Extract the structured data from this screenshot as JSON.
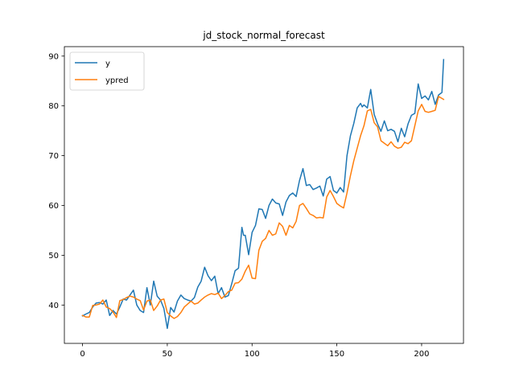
{
  "chart_data": {
    "type": "line",
    "title": "jd_stock_normal_forecast",
    "xlabel": "",
    "ylabel": "",
    "xlim": [
      -10.7,
      224.7
    ],
    "ylim": [
      32.3,
      91.9
    ],
    "xticks": [
      0,
      50,
      100,
      150,
      200
    ],
    "yticks": [
      40,
      50,
      60,
      70,
      80,
      90
    ],
    "grid": false,
    "legend_position": "top-left",
    "series": [
      {
        "name": "y",
        "color": "#1f77b4",
        "x": [
          0,
          2,
          4,
          6,
          8,
          10,
          12,
          14,
          16,
          18,
          20,
          22,
          24,
          26,
          28,
          30,
          32,
          34,
          36,
          38,
          40,
          42,
          44,
          46,
          48,
          50,
          52,
          54,
          56,
          58,
          60,
          62,
          64,
          66,
          68,
          70,
          72,
          74,
          76,
          78,
          80,
          82,
          84,
          86,
          88,
          90,
          92,
          94,
          95,
          96,
          98,
          100,
          102,
          104,
          106,
          108,
          110,
          112,
          114,
          116,
          118,
          120,
          122,
          124,
          126,
          128,
          130,
          132,
          134,
          136,
          138,
          140,
          142,
          144,
          146,
          148,
          150,
          152,
          154,
          156,
          158,
          160,
          162,
          164,
          165,
          166,
          168,
          170,
          172,
          174,
          176,
          178,
          180,
          182,
          184,
          186,
          188,
          190,
          192,
          194,
          196,
          198,
          200,
          202,
          204,
          206,
          208,
          210,
          212,
          213
        ],
        "values": [
          37.8,
          38.2,
          38.5,
          39.6,
          40.4,
          40.5,
          40.2,
          41.0,
          37.9,
          38.9,
          38.2,
          39.6,
          41.2,
          41.0,
          42.0,
          43.0,
          40.0,
          38.9,
          38.5,
          43.5,
          40.0,
          44.8,
          41.8,
          41.0,
          39.3,
          35.3,
          39.5,
          38.6,
          40.8,
          42.0,
          41.3,
          41.0,
          40.8,
          41.5,
          43.6,
          44.8,
          47.6,
          45.9,
          44.9,
          45.8,
          42.3,
          43.5,
          41.6,
          41.9,
          44.3,
          46.9,
          47.4,
          55.6,
          54.0,
          54.0,
          50.1,
          54.6,
          56.0,
          59.3,
          59.2,
          57.4,
          60.0,
          61.3,
          60.5,
          60.3,
          58.0,
          60.7,
          62.0,
          62.5,
          61.8,
          65.0,
          67.4,
          64.0,
          64.2,
          63.2,
          63.5,
          63.9,
          61.9,
          65.3,
          65.8,
          63.0,
          62.5,
          63.6,
          62.7,
          70.0,
          74.0,
          76.5,
          79.6,
          80.5,
          79.8,
          80.2,
          79.6,
          83.3,
          78.3,
          76.4,
          74.9,
          77.0,
          75.0,
          75.3,
          74.9,
          72.8,
          75.5,
          73.8,
          76.4,
          78.1,
          78.5,
          84.4,
          81.5,
          82.0,
          81.2,
          82.9,
          80.3,
          82.2,
          82.7,
          89.3
        ]
      },
      {
        "name": "ypred",
        "color": "#ff7f0e",
        "x": [
          0,
          2,
          4,
          6,
          8,
          10,
          12,
          14,
          16,
          18,
          20,
          22,
          24,
          26,
          28,
          30,
          32,
          34,
          36,
          38,
          40,
          42,
          44,
          46,
          48,
          50,
          52,
          54,
          56,
          58,
          60,
          62,
          64,
          66,
          68,
          70,
          72,
          74,
          76,
          78,
          80,
          82,
          84,
          86,
          88,
          90,
          92,
          94,
          96,
          98,
          100,
          102,
          104,
          106,
          108,
          110,
          112,
          114,
          116,
          118,
          120,
          122,
          124,
          126,
          128,
          130,
          132,
          134,
          136,
          138,
          140,
          142,
          144,
          146,
          148,
          150,
          152,
          154,
          156,
          158,
          160,
          162,
          164,
          166,
          168,
          170,
          172,
          174,
          176,
          178,
          180,
          182,
          184,
          186,
          188,
          190,
          192,
          194,
          196,
          198,
          200,
          202,
          204,
          206,
          208,
          210,
          212,
          213
        ],
        "values": [
          37.9,
          37.6,
          37.6,
          39.9,
          40.0,
          40.2,
          41.0,
          39.6,
          39.3,
          38.6,
          37.5,
          40.9,
          41.1,
          41.5,
          41.8,
          41.6,
          41.2,
          40.9,
          39.0,
          40.8,
          41.0,
          38.9,
          39.8,
          41.0,
          41.2,
          38.5,
          37.8,
          37.3,
          37.7,
          38.5,
          39.6,
          40.2,
          40.8,
          40.2,
          40.4,
          41.0,
          41.6,
          42.0,
          42.3,
          42.1,
          42.4,
          41.3,
          41.9,
          42.7,
          43.0,
          44.4,
          44.5,
          45.2,
          46.8,
          48.0,
          45.4,
          45.3,
          51.0,
          52.8,
          53.4,
          55.0,
          54.0,
          54.3,
          56.5,
          55.8,
          54.0,
          56.0,
          55.5,
          56.8,
          60.0,
          60.4,
          59.4,
          58.3,
          58.0,
          57.5,
          57.6,
          57.5,
          61.7,
          63.0,
          61.8,
          60.4,
          59.9,
          59.5,
          62.5,
          66.0,
          69.0,
          71.5,
          74.0,
          76.0,
          79.0,
          79.3,
          76.6,
          75.8,
          73.0,
          72.5,
          72.0,
          72.8,
          71.9,
          71.5,
          71.7,
          72.7,
          72.4,
          73.0,
          76.0,
          79.0,
          80.3,
          78.9,
          78.7,
          78.9,
          79.1,
          81.9,
          81.5,
          81.3
        ]
      }
    ]
  }
}
